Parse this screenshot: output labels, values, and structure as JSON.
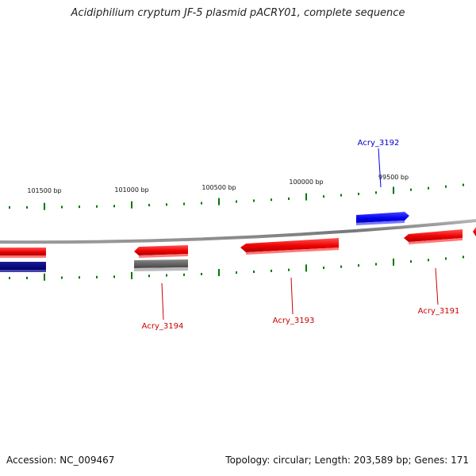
{
  "title": "Acidiphilium cryptum JF-5 plasmid pACRY01, complete sequence",
  "footer": {
    "accession": "Accession: NC_009467",
    "summary": "Topology: circular; Length: 203,589 bp; Genes: 171"
  },
  "colors": {
    "forward_gene": "#ee1111",
    "reverse_gene": "#dd1111",
    "selected_gene": "#0000ee",
    "selected_reverse": "#000080",
    "pseudo_gene": "#555555",
    "ticks": "#007700",
    "backbone": "#888888"
  },
  "scale_labels": [
    "101500 bp",
    "101000 bp",
    "100500 bp",
    "100000 bp",
    "99500 bp"
  ],
  "gene_labels": [
    {
      "text": "Acry_3192",
      "color": "#0000cc"
    },
    {
      "text": "Acry_3194",
      "color": "#cc0000"
    },
    {
      "text": "Acry_3193",
      "color": "#cc0000"
    },
    {
      "text": "Acry_3191",
      "color": "#cc0000"
    }
  ]
}
